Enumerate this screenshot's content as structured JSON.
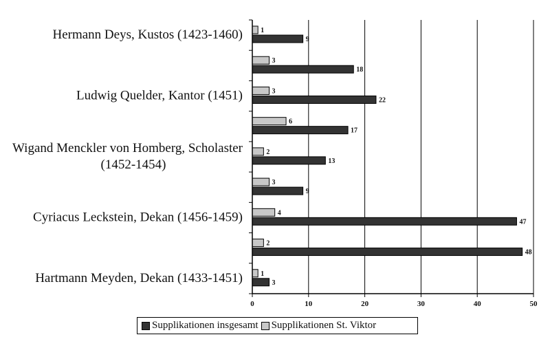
{
  "chart_data": {
    "type": "bar",
    "orientation": "horizontal",
    "categories": [
      "Hermann Deys, Kustos (1423-1460)",
      "",
      "Ludwig Quelder, Kantor (1451)",
      "",
      "Wigand Menckler von Homberg, Scholaster (1452-1454)",
      "",
      "Cyriacus Leckstein, Dekan (1456-1459)",
      "",
      "Hartmann Meyden, Dekan (1433-1451)"
    ],
    "category_label_lines": [
      [
        "Hermann Deys, Kustos (1423-1460)"
      ],
      [],
      [
        "Ludwig Quelder, Kantor (1451)"
      ],
      [],
      [
        "Wigand Menckler von Homberg, Scholaster",
        "(1452-1454)"
      ],
      [],
      [
        "Cyriacus Leckstein, Dekan (1456-1459)"
      ],
      [],
      [
        "Hartmann Meyden, Dekan (1433-1451)"
      ]
    ],
    "series": [
      {
        "name": "Supplikationen St. Viktor",
        "values": [
          1,
          3,
          3,
          6,
          2,
          3,
          4,
          2,
          1
        ]
      },
      {
        "name": "Supplikationen insgesamt",
        "values": [
          9,
          18,
          22,
          17,
          13,
          9,
          47,
          48,
          3
        ]
      }
    ],
    "xlim": [
      0,
      50
    ],
    "xticks": [
      0,
      10,
      20,
      30,
      40,
      50
    ],
    "grid": "vertical",
    "legend_position": "bottom",
    "legend_order": [
      "Supplikationen insgesamt",
      "Supplikationen St. Viktor"
    ],
    "colors": {
      "Supplikationen insgesamt": "#333333",
      "Supplikationen St. Viktor": "#c8c8c8"
    }
  }
}
